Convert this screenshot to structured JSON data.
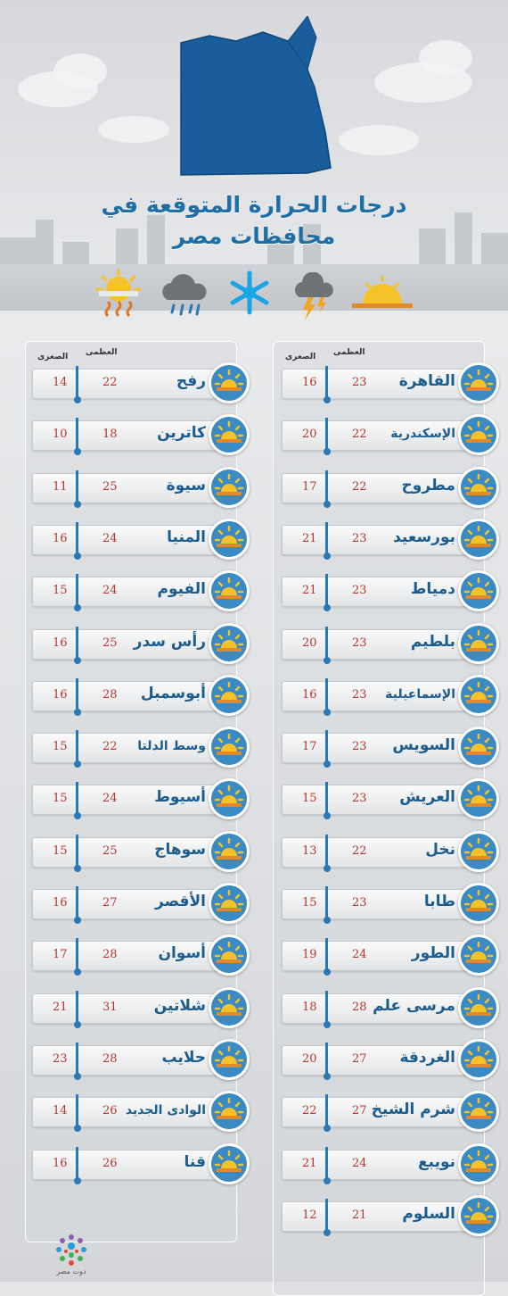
{
  "title": {
    "line1": "درجات الحرارة المتوقعة في",
    "line2": "محافظات مصر"
  },
  "weather_icons": [
    "sunny-hot-icon",
    "rain-cloud-icon",
    "snowflake-icon",
    "thunderstorm-icon",
    "sunset-icon"
  ],
  "columns": {
    "max_label": "العظمى",
    "min_label": "الصغرى"
  },
  "right_column": [
    {
      "city": "القاهرة",
      "max": "23",
      "min": "16"
    },
    {
      "city": "الإسكندرية",
      "max": "22",
      "min": "20"
    },
    {
      "city": "مطروح",
      "max": "22",
      "min": "17"
    },
    {
      "city": "بورسعيد",
      "max": "23",
      "min": "21"
    },
    {
      "city": "دمياط",
      "max": "23",
      "min": "21"
    },
    {
      "city": "بلطيم",
      "max": "23",
      "min": "20"
    },
    {
      "city": "الإسماعيلية",
      "max": "23",
      "min": "16"
    },
    {
      "city": "السويس",
      "max": "23",
      "min": "17"
    },
    {
      "city": "العريش",
      "max": "23",
      "min": "15"
    },
    {
      "city": "نخل",
      "max": "22",
      "min": "13"
    },
    {
      "city": "طابا",
      "max": "23",
      "min": "15"
    },
    {
      "city": "الطور",
      "max": "24",
      "min": "19"
    },
    {
      "city": "مرسى علم",
      "max": "28",
      "min": "18"
    },
    {
      "city": "الغردقة",
      "max": "27",
      "min": "20"
    },
    {
      "city": "شرم الشيخ",
      "max": "27",
      "min": "22"
    },
    {
      "city": "نويبع",
      "max": "24",
      "min": "21"
    },
    {
      "city": "السلوم",
      "max": "21",
      "min": "12"
    }
  ],
  "left_column": [
    {
      "city": "رفح",
      "max": "22",
      "min": "14"
    },
    {
      "city": "كاترين",
      "max": "18",
      "min": "10"
    },
    {
      "city": "سيوة",
      "max": "25",
      "min": "11"
    },
    {
      "city": "المنيا",
      "max": "24",
      "min": "16"
    },
    {
      "city": "الفيوم",
      "max": "24",
      "min": "15"
    },
    {
      "city": "رأس سدر",
      "max": "25",
      "min": "16"
    },
    {
      "city": "أبوسمبل",
      "max": "28",
      "min": "16"
    },
    {
      "city": "وسط الدلتا",
      "max": "22",
      "min": "15"
    },
    {
      "city": "أسيوط",
      "max": "24",
      "min": "15"
    },
    {
      "city": "سوهاج",
      "max": "25",
      "min": "15"
    },
    {
      "city": "الأقصر",
      "max": "27",
      "min": "16"
    },
    {
      "city": "أسوان",
      "max": "28",
      "min": "17"
    },
    {
      "city": "شلاتين",
      "max": "31",
      "min": "21"
    },
    {
      "city": "حلايب",
      "max": "28",
      "min": "23"
    },
    {
      "city": "الوادى الجديد",
      "max": "26",
      "min": "14"
    },
    {
      "city": "قنا",
      "max": "26",
      "min": "16"
    }
  ],
  "row_icon": "sun-horizon-icon",
  "logo": {
    "text": "دوت مصر"
  },
  "colors": {
    "title": "#1f6fa6",
    "city": "#1c5d8e",
    "temperature": "#b6372d",
    "thermometer": "#2a79b4",
    "badge": "#3a8ac3"
  }
}
